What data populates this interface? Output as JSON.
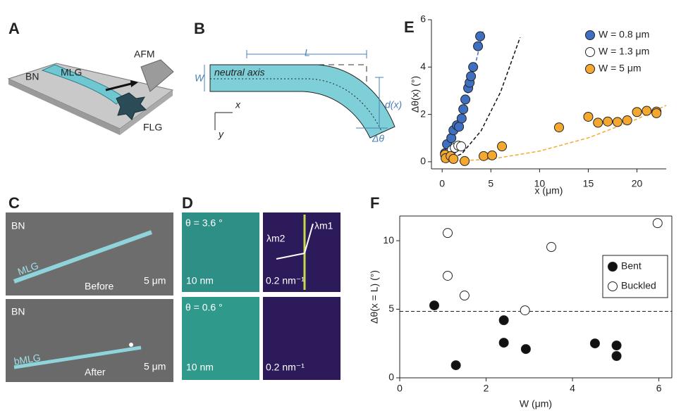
{
  "panel_labels": [
    "A",
    "B",
    "C",
    "D",
    "E",
    "F"
  ],
  "panel_a": {
    "bn": "BN",
    "mlg": "MLG",
    "afm": "AFM",
    "flg": "FLG"
  },
  "panel_b": {
    "length": "L",
    "width": "W",
    "axis": "neutral axis",
    "x": "x",
    "y": "y",
    "deflection": "d(x)",
    "angle": "Δθ"
  },
  "panel_c": {
    "top": {
      "bn": "BN",
      "mlg": "MLG",
      "state": "Before",
      "scale": "5 μm"
    },
    "bottom": {
      "bn": "BN",
      "mlg": "bMLG",
      "state": "After",
      "scale": "5 μm"
    }
  },
  "panel_d": {
    "top": {
      "theta": "θ = 3.6 °",
      "scale": "10 nm",
      "lambda1": "λm1",
      "lambda2": "λm2",
      "fft_scale": "0.2 nm⁻¹"
    },
    "bottom": {
      "theta": "θ = 0.6 °",
      "scale": "10 nm",
      "fft_scale": "0.2 nm⁻¹"
    }
  },
  "chart_data": [
    {
      "type": "scatter",
      "xlabel": "x (μm)",
      "ylabel": "Δθ(x) (°)",
      "xlim": [
        -1.1,
        23
      ],
      "ylim": [
        -0.3,
        6
      ],
      "xticks": [
        0,
        5,
        10,
        15,
        20
      ],
      "yticks": [
        0,
        2,
        4,
        6
      ],
      "legend": "upper right",
      "box": false,
      "series": [
        {
          "name": "W = 0.8 μm",
          "color": "#3f6fc0",
          "x": [
            0.29,
            0.5,
            0.94,
            1.16,
            1.52,
            1.73,
            2.0,
            2.17,
            2.38,
            2.67,
            2.82,
            2.96,
            3.18,
            3.68,
            3.9
          ],
          "values": [
            0.36,
            0.74,
            1.0,
            1.33,
            1.54,
            1.48,
            1.83,
            2.22,
            2.63,
            3.11,
            3.34,
            3.61,
            4.0,
            4.88,
            5.3
          ],
          "fit_color": "#3f6fc0",
          "fit_x": [
            0,
            1,
            2,
            3,
            4.2
          ],
          "fit_values": [
            0,
            0.9,
            2.0,
            3.4,
            5.5
          ]
        },
        {
          "name": "W = 1.3 μm",
          "color": "#ffffff",
          "x": [
            0.36,
            0.72,
            1.01,
            1.3,
            1.66,
            1.95
          ],
          "values": [
            0.3,
            0.38,
            0.5,
            0.59,
            0.68,
            0.65
          ],
          "fit_color": "#111111",
          "fit_x": [
            0,
            2,
            4,
            6,
            8
          ],
          "fit_values": [
            0,
            0.33,
            1.31,
            2.95,
            5.25
          ]
        },
        {
          "name": "W = 5 μm",
          "color": "#f5a830",
          "x": [
            0.29,
            0.36,
            0.87,
            1.16,
            2.31,
            4.26,
            5.13,
            6.14,
            12,
            15,
            16,
            17,
            18,
            19,
            20,
            21,
            22,
            22
          ],
          "values": [
            0.3,
            0.15,
            0.24,
            0.12,
            0.03,
            0.24,
            0.27,
            0.65,
            1.45,
            1.9,
            1.65,
            1.7,
            1.68,
            1.75,
            2.1,
            2.15,
            2.12,
            2.05
          ],
          "fit_color": "#f5a830",
          "fit_x": [
            0,
            5,
            10,
            15,
            20,
            23
          ],
          "fit_values": [
            0,
            0.11,
            0.45,
            1.01,
            1.8,
            2.38
          ]
        }
      ]
    },
    {
      "type": "scatter",
      "xlabel": "W (μm)",
      "ylabel": "Δθ(x = L) (°)",
      "xlim": [
        0,
        6.3
      ],
      "ylim": [
        0,
        11.8
      ],
      "xticks": [
        0,
        2,
        4,
        6
      ],
      "yticks": [
        0,
        5,
        10
      ],
      "legend": "right",
      "box": true,
      "reference_line": 4.85,
      "series": [
        {
          "name": "Bent",
          "color": "#111111",
          "x": [
            0.8,
            1.3,
            2.41,
            2.41,
            2.92,
            4.52,
            5.02,
            5.02
          ],
          "values": [
            5.28,
            0.92,
            4.2,
            2.56,
            2.1,
            2.51,
            2.36,
            1.59
          ]
        },
        {
          "name": "Buckled",
          "color": "#ffffff",
          "x": [
            1.11,
            1.11,
            1.5,
            2.9,
            3.51,
            5.97
          ],
          "values": [
            10.56,
            7.44,
            6.0,
            4.92,
            9.54,
            11.28
          ]
        }
      ]
    }
  ]
}
